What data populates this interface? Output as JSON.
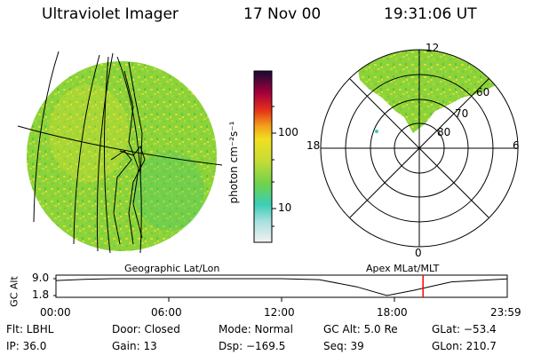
{
  "header": {
    "instrument": "Ultraviolet Imager",
    "date": "17 Nov 00",
    "time": "19:31:06 UT"
  },
  "colorbar": {
    "unit_label": "photon cm⁻²s⁻¹",
    "tick_labels": [
      "100",
      "10"
    ]
  },
  "left_panel": {
    "caption": "Geographic Lat/Lon"
  },
  "polar_plot": {
    "caption": "Apex MLat/MLT",
    "mlt_labels": {
      "top": "12",
      "left": "18",
      "right": "6",
      "bottom": "0"
    },
    "lat_labels": [
      "60",
      "70",
      "80"
    ]
  },
  "altitude_strip": {
    "axis_label": "GC Alt",
    "y_ticks": [
      "9.0",
      "1.8"
    ],
    "x_ticks": [
      "00:00",
      "06:00",
      "12:00",
      "18:00",
      "23:59"
    ],
    "current_time_marker_hours": 19.52,
    "curve_hours": [
      0,
      1.5,
      3,
      4.5,
      6,
      8,
      10,
      12,
      14,
      16,
      17.6,
      19,
      21,
      23.99
    ],
    "curve_altitude": [
      8.2,
      8.7,
      9.0,
      9.0,
      9.0,
      9.0,
      9.0,
      9.0,
      8.6,
      5.5,
      1.8,
      4.0,
      7.6,
      8.9
    ]
  },
  "info_rows": [
    [
      "Flt: LBHL",
      "Door: Closed",
      "Mode: Normal",
      "GC Alt: 5.0 Re",
      "GLat: −53.4"
    ],
    [
      "IP: 36.0",
      "Gain: 13",
      "Dsp: −169.5",
      "Seq: 39",
      "GLon: 210.7"
    ]
  ],
  "colors": {
    "line": "#000000",
    "marker": "#ff0000",
    "colorbar_stops": [
      "#dde3e8",
      "#47d1b5",
      "#7fd24a",
      "#dde033",
      "#f3a01b",
      "#e33018",
      "#a9003a",
      "#1a0b36"
    ]
  }
}
